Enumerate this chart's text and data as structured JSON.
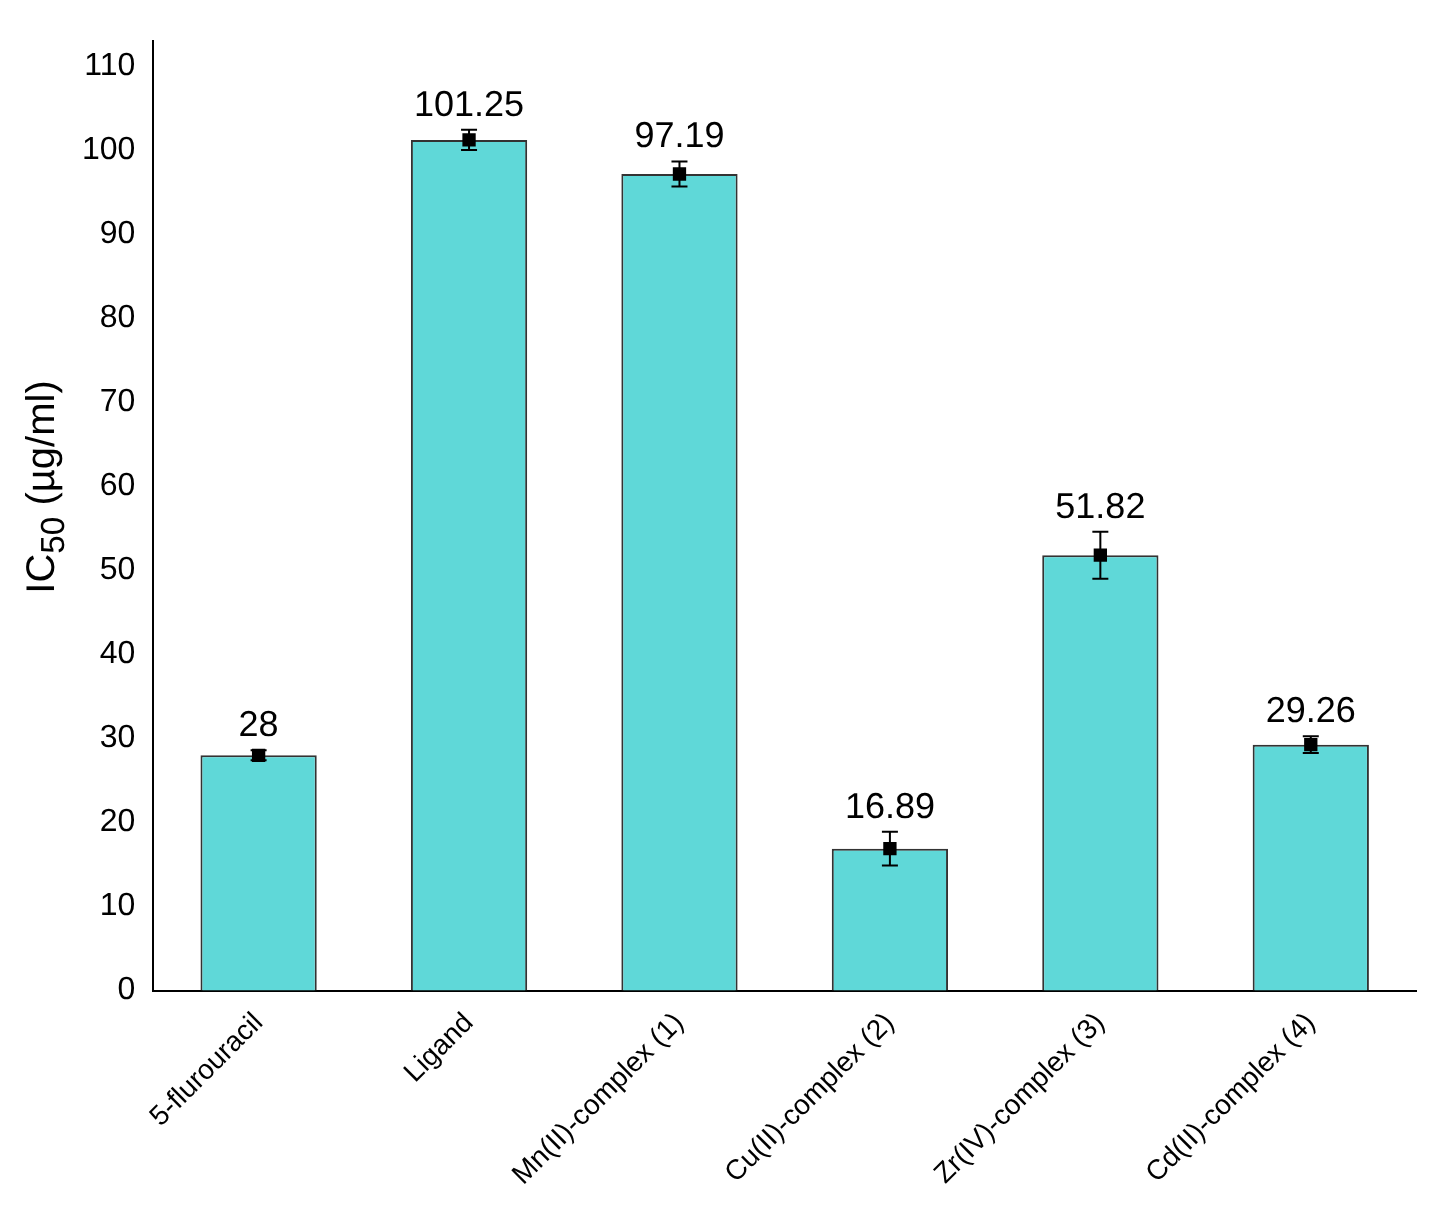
{
  "chart_data": {
    "type": "bar",
    "ylabel": "IC$_{50}$ (µg/ml)",
    "categories": [
      "5-flurouracil",
      "Ligand",
      "Mn(II)-complex (1)",
      "Cu(II)-complex (2)",
      "Zr(IV)-complex (3)",
      "Cd(II)-complex (4)"
    ],
    "series": [
      {
        "color": "#5fd8d8",
        "values": [
          28,
          101.25,
          97.19,
          16.89,
          51.82,
          29.26
        ],
        "errors": [
          0.6,
          1.2,
          1.5,
          2,
          2.8,
          1
        ],
        "value_labels": [
          "28",
          "101.25",
          "97.19",
          "16.89",
          "51.82",
          "29.26"
        ]
      },
      {
        "type": "scatter",
        "color": "#000000",
        "marker": "square",
        "x": [
          "5-flurouracil",
          "Ligand",
          "Mn(II)-complex (1)",
          "Cu(II)-complex (2)",
          "Zr(IV)-complex (3)",
          "Cd(II)-complex (4)"
        ],
        "values": [
          28,
          101.25,
          97.19,
          16.89,
          51.82,
          29.26
        ]
      }
    ],
    "ylim": [
      0,
      113
    ],
    "yticks": [
      0,
      10,
      20,
      30,
      40,
      50,
      60,
      70,
      80,
      90,
      100,
      110
    ],
    "grid": false,
    "legend": false
  }
}
